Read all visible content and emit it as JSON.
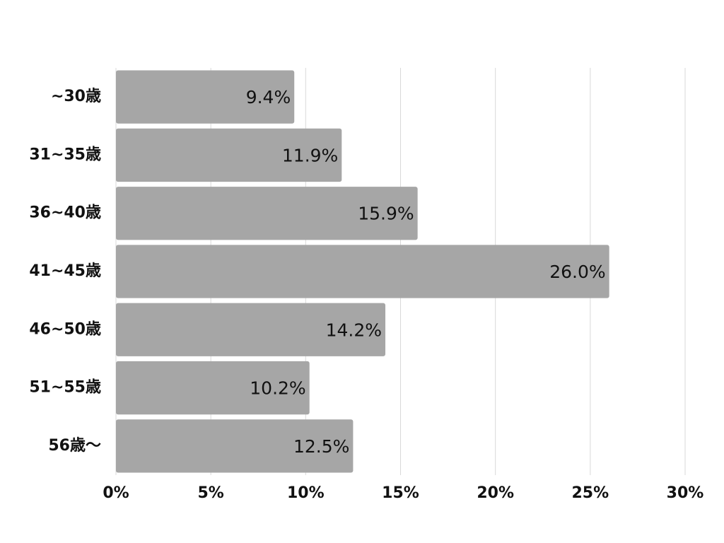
{
  "chart_data": {
    "type": "bar",
    "orientation": "horizontal",
    "categories": [
      "~30歳",
      "31~35歳",
      "36~40歳",
      "41~45歳",
      "46~50歳",
      "51~55歳",
      "56歳〜"
    ],
    "values": [
      9.4,
      11.9,
      15.9,
      26.0,
      14.2,
      10.2,
      12.5
    ],
    "value_labels": [
      "9.4%",
      "11.9%",
      "15.9%",
      "26.0%",
      "14.2%",
      "10.2%",
      "12.5%"
    ],
    "color": "#a6a6a6",
    "xlim": [
      0,
      30
    ],
    "xticks": [
      {
        "value": 0,
        "label": "0%"
      },
      {
        "value": 5,
        "label": "5%"
      },
      {
        "value": 10,
        "label": "10%"
      },
      {
        "value": 15,
        "label": "15%"
      },
      {
        "value": 20,
        "label": "20%"
      },
      {
        "value": 25,
        "label": "25%"
      },
      {
        "value": 30,
        "label": "30%"
      }
    ],
    "grid": true
  }
}
